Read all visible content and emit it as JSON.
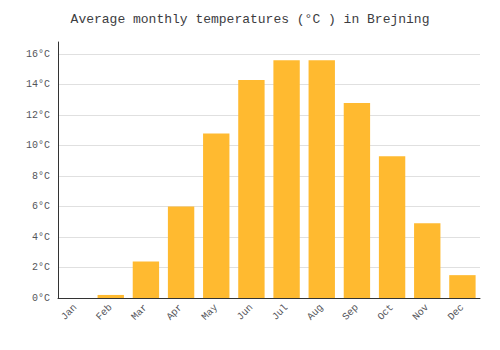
{
  "chart_data": {
    "type": "bar",
    "title": "Average monthly temperatures (°C ) in Brejning",
    "categories": [
      "Jan",
      "Feb",
      "Mar",
      "Apr",
      "May",
      "Jun",
      "Jul",
      "Aug",
      "Sep",
      "Oct",
      "Nov",
      "Dec"
    ],
    "values": [
      0.0,
      0.2,
      2.4,
      6.0,
      10.8,
      14.3,
      15.6,
      15.6,
      12.8,
      9.3,
      4.9,
      1.5
    ],
    "color": "#FFBA30",
    "ylim": [
      0,
      16.8
    ],
    "yticks": [
      {
        "value": 0,
        "label": "0°C"
      },
      {
        "value": 2,
        "label": "2°C"
      },
      {
        "value": 4,
        "label": "4°C"
      },
      {
        "value": 6,
        "label": "6°C"
      },
      {
        "value": 8,
        "label": "8°C"
      },
      {
        "value": 10,
        "label": "10°C"
      },
      {
        "value": 12,
        "label": "12°C"
      },
      {
        "value": 14,
        "label": "14°C"
      },
      {
        "value": 16,
        "label": "16°C"
      }
    ],
    "grid": true
  }
}
